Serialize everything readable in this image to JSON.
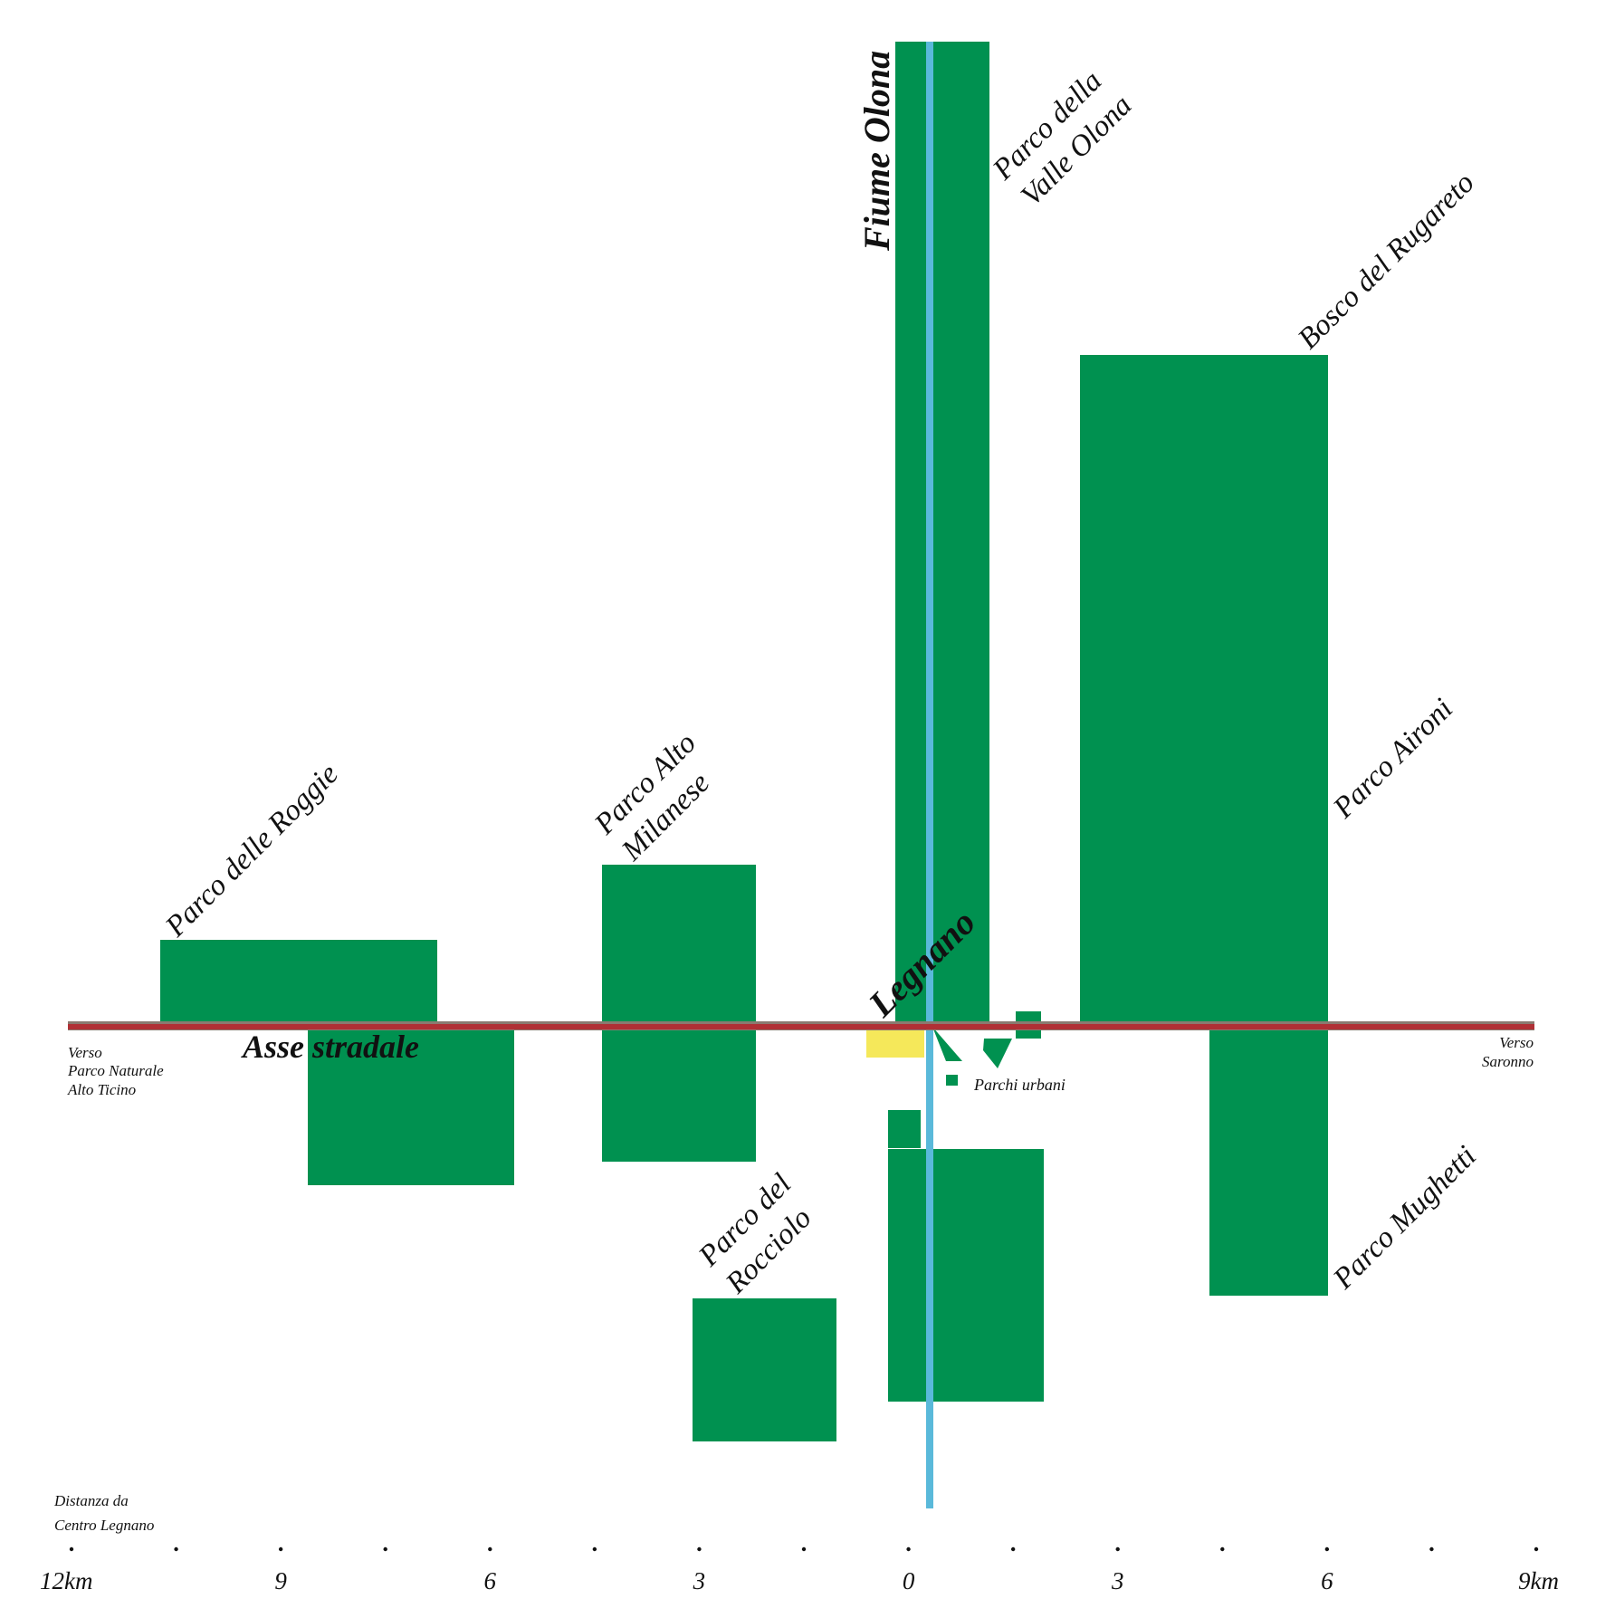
{
  "colors": {
    "park": "#009150",
    "river": "#5ab9da",
    "road": "#b03035",
    "road_edge": "#8a7a70",
    "city": "#f5e85a",
    "background": "#ffffff"
  },
  "parks": [
    {
      "name": "Parco delle Roggie"
    },
    {
      "name": "Parco Alto Milanese"
    },
    {
      "name": "Parco della Valle Olona"
    },
    {
      "name": "Bosco del Rugareto"
    },
    {
      "name": "Parco Aironi"
    },
    {
      "name": "Parco Mughetti"
    },
    {
      "name": "Parco del Rocciolo"
    }
  ],
  "labels": {
    "roggie": "Parco delle Roggie",
    "alto_1": "Parco Alto",
    "alto_2": "Milanese",
    "valle_1": "Parco della",
    "valle_2": "Valle Olona",
    "rugareto": "Bosco del Rugareto",
    "aironi": "Parco Aironi",
    "mughetti": "Parco Mughetti",
    "rocciolo_1": "Parco del",
    "rocciolo_2": "Rocciolo",
    "river": "Fiume Olona",
    "city": "Legnano",
    "road": "Asse stradale",
    "urban_parks": "Parchi urbani",
    "west_1": "Verso",
    "west_2": "Parco Naturale",
    "west_3": "Alto Ticino",
    "east_1": "Verso",
    "east_2": "Saronno",
    "distance_1": "Distanza da",
    "distance_2": "Centro Legnano"
  },
  "scale": {
    "ticks": [
      "12km",
      "9",
      "6",
      "3",
      "0",
      "3",
      "6",
      "9km"
    ]
  }
}
